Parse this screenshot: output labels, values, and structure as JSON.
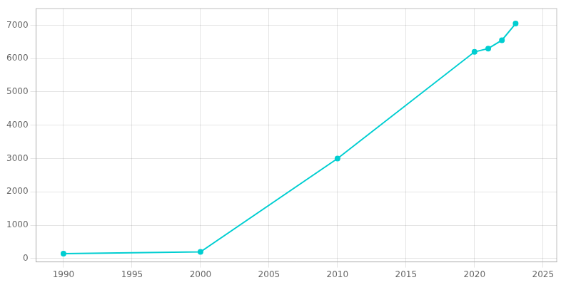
{
  "chart_data": {
    "type": "line",
    "x": [
      1990,
      2000,
      2010,
      2020,
      2021,
      2022,
      2023
    ],
    "values": [
      150,
      200,
      3000,
      6200,
      6300,
      6550,
      7050
    ],
    "color": "#00CED1",
    "marker": "circle",
    "xlim": [
      1988,
      2026
    ],
    "ylim": [
      -100,
      7500
    ],
    "xticks": [
      1990,
      1995,
      2000,
      2005,
      2010,
      2015,
      2020,
      2025
    ],
    "yticks": [
      0,
      1000,
      2000,
      3000,
      4000,
      5000,
      6000,
      7000
    ],
    "grid": true
  }
}
